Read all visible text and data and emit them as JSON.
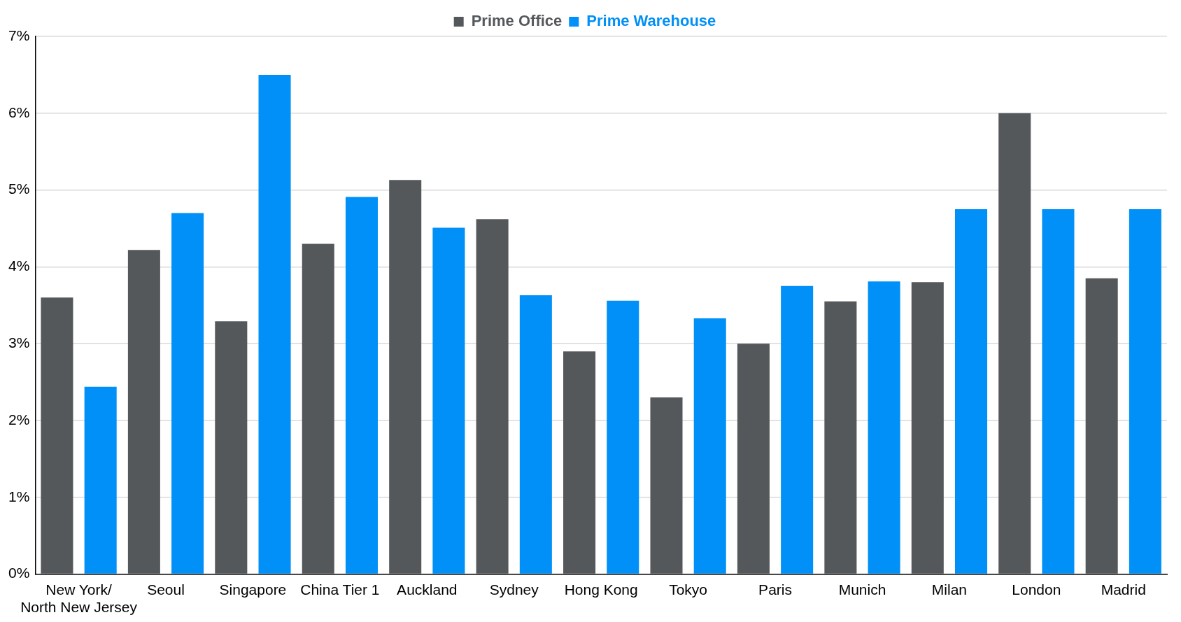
{
  "chart_data": {
    "type": "bar",
    "categories": [
      "New York/\nNorth New Jersey",
      "Seoul",
      "Singapore",
      "China Tier 1",
      "Auckland",
      "Sydney",
      "Hong Kong",
      "Tokyo",
      "Paris",
      "Munich",
      "Milan",
      "London",
      "Madrid"
    ],
    "series": [
      {
        "name": "Prime Office",
        "color": "#55585b",
        "values": [
          3.6,
          4.22,
          3.29,
          4.3,
          5.13,
          4.62,
          2.9,
          2.3,
          3.0,
          3.55,
          3.8,
          6.0,
          3.85
        ]
      },
      {
        "name": "Prime Warehouse",
        "color": "#0090f7",
        "values": [
          2.44,
          4.7,
          6.5,
          4.91,
          4.51,
          3.63,
          3.56,
          3.33,
          3.75,
          3.81,
          4.75,
          4.75,
          4.75
        ]
      }
    ],
    "ylim": [
      0,
      7
    ],
    "yticks": [
      {
        "value": 0,
        "label": "0%"
      },
      {
        "value": 1,
        "label": "1%"
      },
      {
        "value": 2,
        "label": "2%"
      },
      {
        "value": 3,
        "label": "3%"
      },
      {
        "value": 4,
        "label": "4%"
      },
      {
        "value": 5,
        "label": "5%"
      },
      {
        "value": 6,
        "label": "6%"
      },
      {
        "value": 7,
        "label": "7%"
      }
    ],
    "grid": "y",
    "legend": "top"
  }
}
